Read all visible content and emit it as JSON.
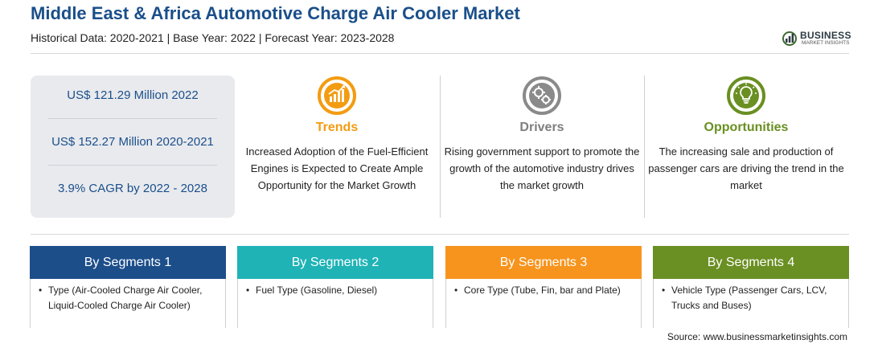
{
  "header": {
    "title": "Middle East & Africa Automotive Charge Air Cooler Market",
    "subtitle": "Historical Data: 2020-2021 | Base Year: 2022 | Forecast Year: 2023-2028"
  },
  "logo": {
    "line1": "BUSINESS",
    "line2": "MARKET INSIGHTS"
  },
  "stats": [
    {
      "text": "US$ 121.29 Million 2022"
    },
    {
      "text": "US$ 152.27 Million 2020-2021"
    },
    {
      "text": "3.9% CAGR by 2022 - 2028"
    }
  ],
  "columns": [
    {
      "heading": "Trends",
      "color": "#f39c12",
      "icon": "trend-chart-icon",
      "description": "Increased Adoption of the Fuel-Efficient Engines is Expected to Create Ample Opportunity for the Market Growth"
    },
    {
      "heading": "Drivers",
      "color": "#7f7f7f",
      "icon": "gears-icon",
      "description": "Rising government support to promote the growth of the automotive industry drives the market growth"
    },
    {
      "heading": "Opportunities",
      "color": "#6a8f22",
      "icon": "lightbulb-icon",
      "description": "The increasing sale and production of passenger cars are driving the trend in the market"
    }
  ],
  "segments": [
    {
      "title": "By Segments 1",
      "color": "#1c4e8a",
      "bullet": "•",
      "text": "Type (Air-Cooled Charge Air Cooler, Liquid-Cooled Charge Air Cooler)"
    },
    {
      "title": "By Segments 2",
      "color": "#1fb3b6",
      "bullet": "•",
      "text": "Fuel Type (Gasoline, Diesel)"
    },
    {
      "title": "By Segments 3",
      "color": "#f7941d",
      "bullet": "•",
      "text": "Core Type (Tube, Fin, bar and Plate)"
    },
    {
      "title": "By Segments 4",
      "color": "#6a8f22",
      "bullet": "•",
      "text": "Vehicle Type (Passenger Cars, LCV, Trucks and Buses)"
    }
  ],
  "source": "Source: www.businessmarketinsights.com"
}
